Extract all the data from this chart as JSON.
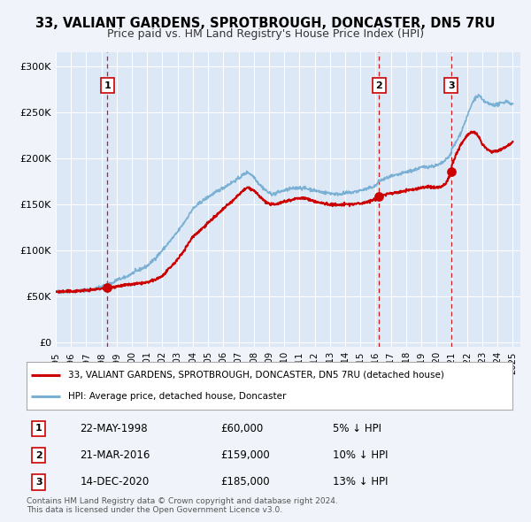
{
  "title": "33, VALIANT GARDENS, SPROTBROUGH, DONCASTER, DN5 7RU",
  "subtitle": "Price paid vs. HM Land Registry's House Price Index (HPI)",
  "background_color": "#f0f4fa",
  "plot_bg_color": "#dce8f5",
  "sale_color": "#cc0000",
  "hpi_color": "#7ab0d4",
  "title_fontsize": 10.5,
  "subtitle_fontsize": 9,
  "yticks": [
    0,
    50000,
    100000,
    150000,
    200000,
    250000,
    300000
  ],
  "ytick_labels": [
    "£0",
    "£50K",
    "£100K",
    "£150K",
    "£200K",
    "£250K",
    "£300K"
  ],
  "ylim": [
    -5000,
    315000
  ],
  "xlim_start": 1995.0,
  "xlim_end": 2025.5,
  "xtick_years": [
    1995,
    1996,
    1997,
    1998,
    1999,
    2000,
    2001,
    2002,
    2003,
    2004,
    2005,
    2006,
    2007,
    2008,
    2009,
    2010,
    2011,
    2012,
    2013,
    2014,
    2015,
    2016,
    2017,
    2018,
    2019,
    2020,
    2021,
    2022,
    2023,
    2024,
    2025
  ],
  "sale_dates": [
    1998.38,
    2016.22,
    2020.96
  ],
  "sale_prices": [
    60000,
    159000,
    185000
  ],
  "sale_labels": [
    "1",
    "2",
    "3"
  ],
  "vline_dates": [
    1998.38,
    2016.22,
    2020.96
  ],
  "legend_sale_label": "33, VALIANT GARDENS, SPROTBROUGH, DONCASTER, DN5 7RU (detached house)",
  "legend_hpi_label": "HPI: Average price, detached house, Doncaster",
  "table_entries": [
    {
      "num": "1",
      "date": "22-MAY-1998",
      "price": "£60,000",
      "pct": "5% ↓ HPI"
    },
    {
      "num": "2",
      "date": "21-MAR-2016",
      "price": "£159,000",
      "pct": "10% ↓ HPI"
    },
    {
      "num": "3",
      "date": "14-DEC-2020",
      "price": "£185,000",
      "pct": "13% ↓ HPI"
    }
  ],
  "footer": "Contains HM Land Registry data © Crown copyright and database right 2024.\nThis data is licensed under the Open Government Licence v3.0.",
  "hpi_anchors_x": [
    1995.0,
    1996.0,
    1997.0,
    1997.5,
    1998.0,
    1998.38,
    1998.8,
    1999.0,
    1999.5,
    2000.0,
    2000.5,
    2001.0,
    2001.5,
    2002.0,
    2002.5,
    2003.0,
    2003.5,
    2004.0,
    2004.5,
    2005.0,
    2005.5,
    2006.0,
    2006.5,
    2007.0,
    2007.3,
    2007.6,
    2008.0,
    2008.3,
    2008.6,
    2009.0,
    2009.3,
    2009.6,
    2010.0,
    2010.5,
    2011.0,
    2011.5,
    2012.0,
    2012.5,
    2013.0,
    2013.5,
    2014.0,
    2014.5,
    2015.0,
    2015.5,
    2016.0,
    2016.22,
    2016.5,
    2017.0,
    2017.5,
    2018.0,
    2018.5,
    2019.0,
    2019.5,
    2020.0,
    2020.3,
    2020.6,
    2020.96,
    2021.0,
    2021.3,
    2021.6,
    2022.0,
    2022.3,
    2022.5,
    2022.8,
    2023.0,
    2023.3,
    2023.6,
    2024.0,
    2024.3,
    2024.6,
    2025.0
  ],
  "hpi_anchors_y": [
    55000,
    55500,
    57000,
    58000,
    60000,
    63000,
    65000,
    68000,
    70000,
    75000,
    79000,
    83000,
    91000,
    100000,
    110000,
    120000,
    132000,
    145000,
    152000,
    158000,
    163000,
    168000,
    173000,
    178000,
    182000,
    185000,
    180000,
    173000,
    168000,
    162000,
    161000,
    163000,
    165000,
    167000,
    168000,
    167000,
    165000,
    163000,
    162000,
    161000,
    162000,
    163000,
    165000,
    167000,
    170000,
    175000,
    177000,
    180000,
    182000,
    185000,
    187000,
    190000,
    191000,
    192000,
    194000,
    198000,
    205000,
    210000,
    218000,
    228000,
    245000,
    258000,
    265000,
    268000,
    263000,
    260000,
    258000,
    258000,
    260000,
    262000,
    258000
  ],
  "sale_anchors_x": [
    1995.0,
    1996.0,
    1997.0,
    1997.5,
    1998.0,
    1998.38,
    1998.8,
    1999.0,
    1999.5,
    2000.0,
    2000.5,
    2001.0,
    2001.5,
    2002.0,
    2002.5,
    2003.0,
    2003.5,
    2004.0,
    2004.5,
    2005.0,
    2005.5,
    2006.0,
    2006.5,
    2007.0,
    2007.3,
    2007.6,
    2008.0,
    2008.3,
    2008.6,
    2009.0,
    2009.3,
    2009.6,
    2010.0,
    2010.5,
    2011.0,
    2011.5,
    2012.0,
    2012.5,
    2013.0,
    2013.5,
    2014.0,
    2014.5,
    2015.0,
    2015.5,
    2016.0,
    2016.22,
    2016.5,
    2017.0,
    2017.5,
    2018.0,
    2018.5,
    2019.0,
    2019.5,
    2020.0,
    2020.3,
    2020.6,
    2020.96,
    2021.0,
    2021.3,
    2021.6,
    2022.0,
    2022.3,
    2022.5,
    2022.8,
    2023.0,
    2023.3,
    2023.6,
    2024.0,
    2024.3,
    2024.6,
    2025.0
  ],
  "sale_anchors_y": [
    55000,
    55500,
    56500,
    57500,
    58500,
    60000,
    60500,
    61000,
    62000,
    63000,
    64000,
    65000,
    68000,
    72000,
    81000,
    90000,
    102000,
    115000,
    122000,
    130000,
    137000,
    145000,
    152000,
    160000,
    165000,
    168000,
    165000,
    160000,
    155000,
    150000,
    150000,
    151000,
    153000,
    155000,
    157000,
    156000,
    153000,
    151000,
    150000,
    149000,
    150000,
    150000,
    151000,
    153000,
    155000,
    159000,
    160000,
    162000,
    163000,
    165000,
    166000,
    168000,
    169000,
    168000,
    169000,
    172000,
    185000,
    192000,
    205000,
    215000,
    225000,
    228000,
    228000,
    222000,
    215000,
    210000,
    207000,
    208000,
    210000,
    213000,
    218000
  ]
}
